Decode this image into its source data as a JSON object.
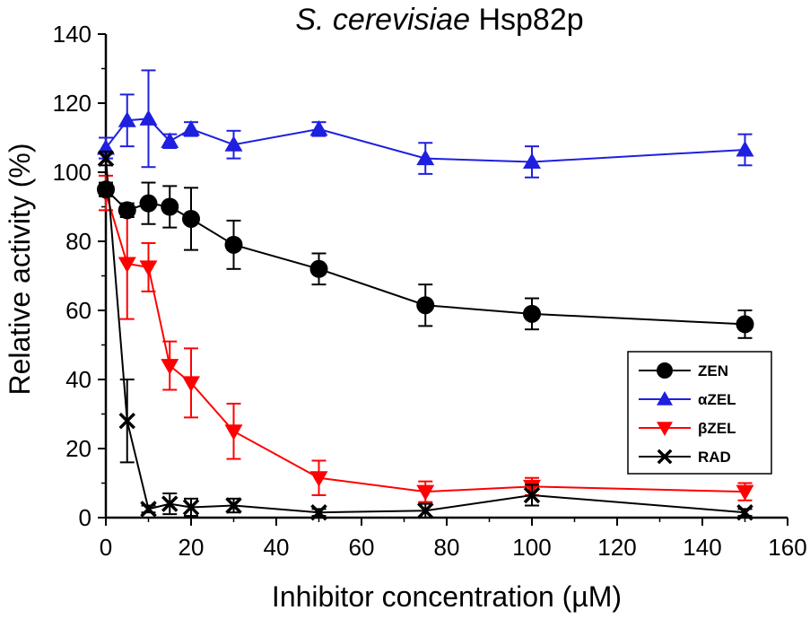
{
  "chart_data": {
    "type": "line",
    "title_italic": "S. cerevisiae",
    "title_rest": " Hsp82p",
    "xlabel": "Inhibitor concentration (µM)",
    "ylabel": "Relative activity (%)",
    "xlim": [
      0,
      160
    ],
    "ylim": [
      0,
      140
    ],
    "xticks": [
      "0",
      "20",
      "40",
      "60",
      "80",
      "100",
      "120",
      "140",
      "160"
    ],
    "yticks": [
      "0",
      "20",
      "40",
      "60",
      "80",
      "100",
      "120",
      "140"
    ],
    "legend_position": "right-middle",
    "series": [
      {
        "name": "ZEN",
        "color": "#000000",
        "marker": "circle",
        "x": [
          0,
          5,
          10,
          15,
          20,
          30,
          50,
          75,
          100,
          150
        ],
        "y": [
          95,
          89,
          91,
          90,
          86.5,
          79,
          72,
          61.5,
          59,
          56
        ],
        "err": [
          2,
          2,
          6,
          6,
          9,
          7,
          4.5,
          6,
          4.5,
          4
        ]
      },
      {
        "name": "αZEL",
        "color": "#1f1fe0",
        "marker": "triangle-up",
        "x": [
          0,
          5,
          10,
          15,
          20,
          30,
          50,
          75,
          100,
          150
        ],
        "y": [
          107,
          115,
          115.5,
          109,
          112.5,
          108,
          112.5,
          104,
          103,
          106.5
        ],
        "err": [
          3,
          7.5,
          14,
          2,
          2,
          4,
          2,
          4.5,
          4.5,
          4.5
        ]
      },
      {
        "name": "βZEL",
        "color": "#ff0000",
        "marker": "triangle-down",
        "x": [
          0,
          5,
          10,
          15,
          20,
          30,
          50,
          75,
          100,
          150
        ],
        "y": [
          94,
          73.5,
          72.5,
          44,
          39,
          25,
          11.5,
          7.5,
          9,
          7.5
        ],
        "err": [
          5,
          16,
          7,
          7,
          10,
          8,
          5,
          3,
          2.5,
          2.5
        ]
      },
      {
        "name": "RAD",
        "color": "#000000",
        "marker": "x",
        "x": [
          0,
          5,
          10,
          15,
          20,
          30,
          50,
          75,
          100,
          150
        ],
        "y": [
          104,
          28,
          2.5,
          4,
          3,
          3.5,
          1.5,
          2,
          6.5,
          1.5
        ],
        "err": [
          2,
          12,
          1,
          3,
          2.5,
          2,
          1,
          2,
          3,
          1
        ]
      }
    ]
  }
}
